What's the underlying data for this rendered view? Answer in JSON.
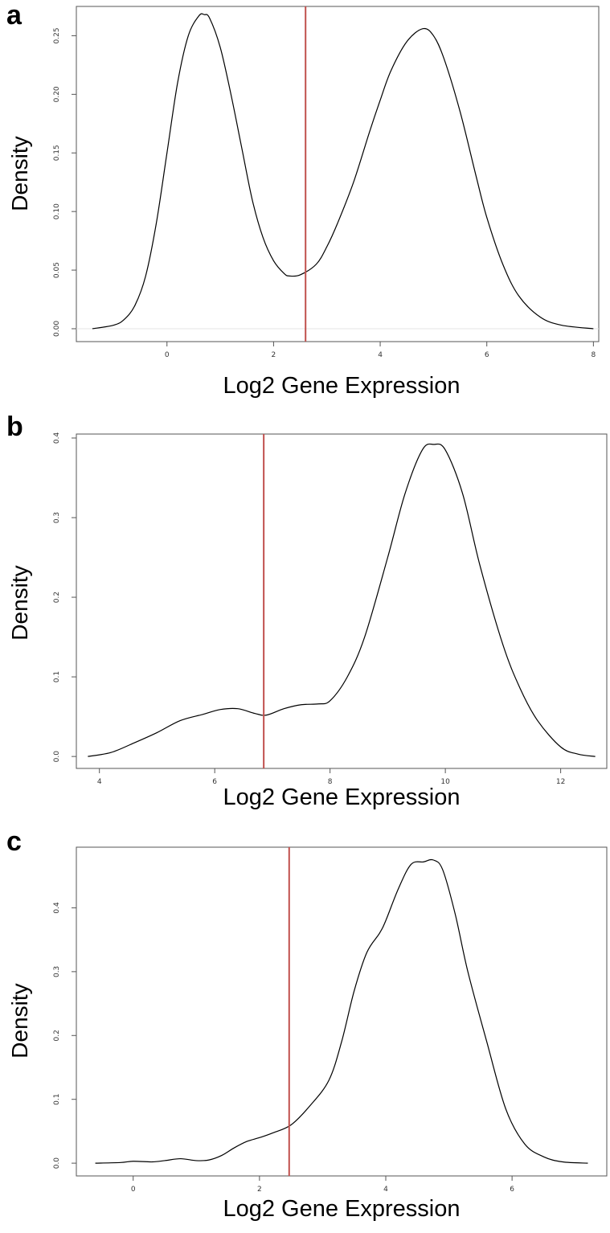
{
  "chart_data": [
    {
      "type": "line",
      "panel": "a",
      "xlabel": "Log2 Gene Expression",
      "ylabel": "Density",
      "xlim": [
        -1.7,
        8.1
      ],
      "ylim": [
        -0.011,
        0.275
      ],
      "xticks": [
        0,
        2,
        4,
        6,
        8
      ],
      "yticks": [
        0.0,
        0.05,
        0.1,
        0.15,
        0.2,
        0.25
      ],
      "ytick_labels": [
        "0.00",
        "0.05",
        "0.10",
        "0.15",
        "0.20",
        "0.25"
      ],
      "cutoff": 2.6,
      "colors": {
        "curve": "#000000",
        "cutoff": "#c0504d"
      },
      "x": [
        -1.4,
        -1.0,
        -0.8,
        -0.6,
        -0.4,
        -0.2,
        0.0,
        0.2,
        0.4,
        0.6,
        0.7,
        0.8,
        1.0,
        1.2,
        1.4,
        1.6,
        1.8,
        2.0,
        2.2,
        2.3,
        2.5,
        2.8,
        3.0,
        3.2,
        3.5,
        3.8,
        4.0,
        4.2,
        4.5,
        4.8,
        5.0,
        5.2,
        5.5,
        5.8,
        6.0,
        6.3,
        6.6,
        7.0,
        7.4,
        8.0
      ],
      "y": [
        0.0,
        0.003,
        0.008,
        0.02,
        0.045,
        0.09,
        0.15,
        0.21,
        0.25,
        0.267,
        0.268,
        0.265,
        0.24,
        0.2,
        0.155,
        0.11,
        0.078,
        0.058,
        0.047,
        0.045,
        0.046,
        0.055,
        0.07,
        0.09,
        0.125,
        0.168,
        0.195,
        0.22,
        0.245,
        0.256,
        0.25,
        0.23,
        0.185,
        0.13,
        0.095,
        0.055,
        0.028,
        0.01,
        0.003,
        0.0
      ]
    },
    {
      "type": "line",
      "panel": "b",
      "xlabel": "Log2 Gene Expression",
      "ylabel": "Density",
      "xlim": [
        3.6,
        12.8
      ],
      "ylim": [
        -0.015,
        0.405
      ],
      "xticks": [
        4,
        6,
        8,
        10,
        12
      ],
      "yticks": [
        0.0,
        0.1,
        0.2,
        0.3,
        0.4
      ],
      "ytick_labels": [
        "0.0",
        "0.1",
        "0.2",
        "0.3",
        "0.4"
      ],
      "cutoff": 6.85,
      "colors": {
        "curve": "#000000",
        "cutoff": "#c0504d"
      },
      "x": [
        3.8,
        4.2,
        4.6,
        5.0,
        5.4,
        5.8,
        6.1,
        6.4,
        6.7,
        6.9,
        7.2,
        7.5,
        7.8,
        8.0,
        8.3,
        8.6,
        9.0,
        9.3,
        9.6,
        9.8,
        10.0,
        10.3,
        10.6,
        11.0,
        11.3,
        11.6,
        12.0,
        12.3,
        12.6
      ],
      "y": [
        0.0,
        0.005,
        0.017,
        0.03,
        0.045,
        0.053,
        0.059,
        0.06,
        0.054,
        0.052,
        0.06,
        0.065,
        0.066,
        0.07,
        0.1,
        0.15,
        0.25,
        0.33,
        0.385,
        0.392,
        0.385,
        0.33,
        0.24,
        0.14,
        0.085,
        0.045,
        0.012,
        0.003,
        0.0
      ]
    },
    {
      "type": "line",
      "panel": "c",
      "xlabel": "Log2 Gene Expression",
      "ylabel": "Density",
      "xlim": [
        -0.9,
        7.5
      ],
      "ylim": [
        -0.02,
        0.495
      ],
      "xticks": [
        0,
        2,
        4,
        6
      ],
      "yticks": [
        0.0,
        0.1,
        0.2,
        0.3,
        0.4
      ],
      "ytick_labels": [
        "0.0",
        "0.1",
        "0.2",
        "0.3",
        "0.4"
      ],
      "cutoff": 2.47,
      "colors": {
        "curve": "#000000",
        "cutoff": "#c0504d"
      },
      "x": [
        -0.6,
        -0.2,
        0.0,
        0.3,
        0.5,
        0.75,
        1.0,
        1.2,
        1.4,
        1.6,
        1.8,
        2.0,
        2.2,
        2.5,
        2.8,
        3.1,
        3.3,
        3.5,
        3.7,
        3.9,
        4.0,
        4.2,
        4.4,
        4.6,
        4.75,
        4.9,
        5.1,
        5.3,
        5.6,
        5.9,
        6.2,
        6.5,
        6.8,
        7.2
      ],
      "y": [
        0.0,
        0.001,
        0.003,
        0.002,
        0.004,
        0.007,
        0.004,
        0.005,
        0.012,
        0.024,
        0.034,
        0.04,
        0.047,
        0.06,
        0.09,
        0.13,
        0.19,
        0.27,
        0.33,
        0.36,
        0.38,
        0.43,
        0.468,
        0.472,
        0.475,
        0.46,
        0.39,
        0.3,
        0.19,
        0.085,
        0.03,
        0.01,
        0.002,
        0.0
      ]
    }
  ]
}
